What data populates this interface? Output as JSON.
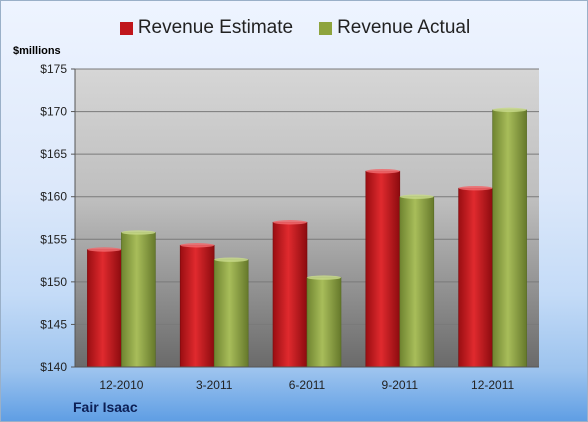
{
  "chart_data": {
    "type": "bar",
    "title": "",
    "xlabel": "",
    "ylabel": "$millions",
    "categories": [
      "12-2010",
      "3-2011",
      "6-2011",
      "9-2011",
      "12-2011"
    ],
    "series": [
      {
        "name": "Revenue Estimate",
        "values": [
          153.8,
          154.3,
          157.0,
          163.0,
          161.0
        ],
        "color": "#c0161c"
      },
      {
        "name": "Revenue Actual",
        "values": [
          155.8,
          152.6,
          150.5,
          160.0,
          170.2
        ],
        "color": "#8ea43e"
      }
    ],
    "ylim": [
      140,
      175
    ],
    "y_ticks": [
      "$140",
      "$145",
      "$150",
      "$155",
      "$160",
      "$165",
      "$170",
      "$175"
    ],
    "grid": true,
    "legend_position": "top-center"
  },
  "footer": {
    "company": "Fair Isaac"
  }
}
